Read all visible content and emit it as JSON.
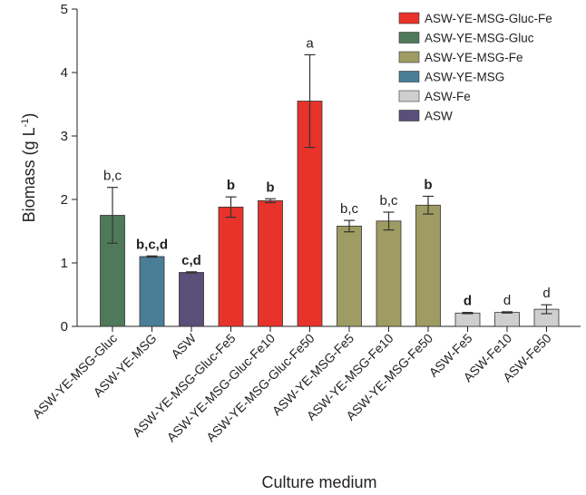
{
  "chart_data": {
    "type": "bar",
    "title": "",
    "xlabel": "Culture medium",
    "ylabel": "Biomass (g L",
    "ylabel_sup": "-1",
    "ylabel_close": ")",
    "ylim": [
      0,
      5
    ],
    "yticks": [
      "0",
      "1",
      "2",
      "3",
      "4",
      "5"
    ],
    "grid": false,
    "legend_position": "top-right",
    "colors": {
      "ASW-YE-MSG-Gluc-Fe": "#e8332b",
      "ASW-YE-MSG-Gluc": "#4e7a5a",
      "ASW-YE-MSG-Fe": "#9e9c62",
      "ASW-YE-MSG": "#4a7e96",
      "ASW-Fe": "#cfcfcf",
      "ASW": "#5a4f78"
    },
    "legend": [
      "ASW-YE-MSG-Gluc-Fe",
      "ASW-YE-MSG-Gluc",
      "ASW-YE-MSG-Fe",
      "ASW-YE-MSG",
      "ASW-Fe",
      "ASW"
    ],
    "categories": [
      "ASW-YE-MSG-Gluc",
      "ASW-YE-MSG",
      "ASW",
      "ASW-YE-MSG-Gluc-Fe5",
      "ASW-YE-MSG-Gluc-Fe10",
      "ASW-YE-MSG-Gluc-Fe50",
      "ASW-YE-MSG-Fe5",
      "ASW-YE-MSG-Fe10",
      "ASW-YE-MSG-Fe50",
      "ASW-Fe5",
      "ASW-Fe10",
      "ASW-Fe50"
    ],
    "groups": [
      "ASW-YE-MSG-Gluc",
      "ASW-YE-MSG",
      "ASW",
      "ASW-YE-MSG-Gluc-Fe",
      "ASW-YE-MSG-Gluc-Fe",
      "ASW-YE-MSG-Gluc-Fe",
      "ASW-YE-MSG-Fe",
      "ASW-YE-MSG-Fe",
      "ASW-YE-MSG-Fe",
      "ASW-Fe",
      "ASW-Fe",
      "ASW-Fe"
    ],
    "values": [
      1.75,
      1.1,
      0.85,
      1.88,
      1.98,
      3.55,
      1.58,
      1.66,
      1.91,
      0.21,
      0.22,
      0.27
    ],
    "errors": [
      0.44,
      0.01,
      0.01,
      0.16,
      0.03,
      0.73,
      0.09,
      0.14,
      0.14,
      0.01,
      0.01,
      0.07
    ],
    "significance": [
      "b,c",
      "b,c,d",
      "c,d",
      "b",
      "b",
      "a",
      "b,c",
      "b,c",
      "b",
      "d",
      "d",
      "d"
    ],
    "significance_bold": [
      false,
      true,
      true,
      true,
      true,
      false,
      false,
      false,
      true,
      true,
      false,
      false
    ]
  }
}
